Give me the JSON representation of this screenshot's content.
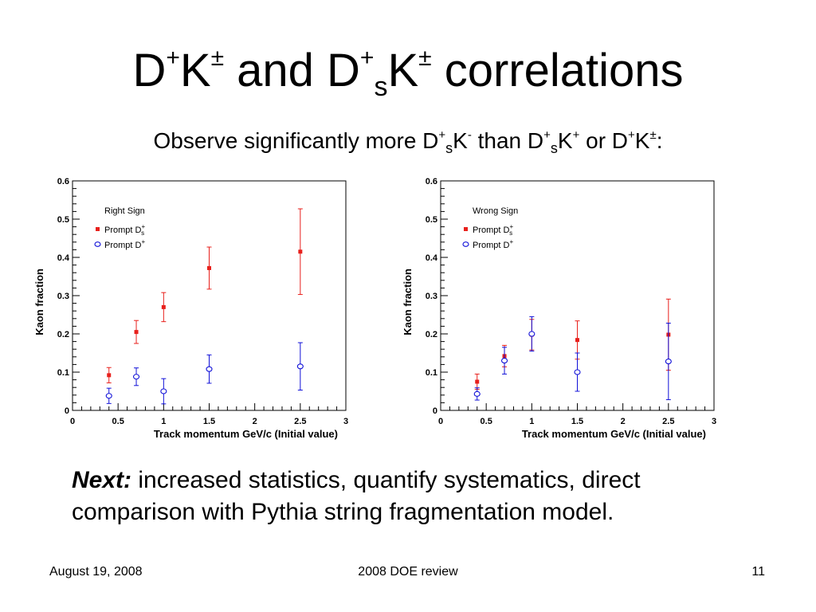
{
  "slide": {
    "title": {
      "p1": "D",
      "p2": "+",
      "p3": "K",
      "p4": "±",
      "p5": " and D",
      "p6": "+",
      "p7": "s",
      "p8": "K",
      "p9": "±",
      "p10": " correlations"
    },
    "subtitle": {
      "p1": "Observe significantly more D",
      "p2": "+",
      "p3": "s",
      "p4": "K",
      "p5": "-",
      "p6": " than D",
      "p7": "+",
      "p8": "s",
      "p9": "K",
      "p10": "+",
      "p11": " or D",
      "p12": "+",
      "p13": "K",
      "p14": "±",
      "p15": ":"
    },
    "next_label": "Next:",
    "next_body": " increased statistics, quantify systematics, direct comparison with Pythia string fragmentation model.",
    "footer": {
      "date": "August 19, 2008",
      "event": "2008 DOE review",
      "page": "11"
    }
  },
  "colors": {
    "prompt_ds": "#e8201c",
    "prompt_d": "#1010d8"
  },
  "chart_data": [
    {
      "type": "scatter",
      "legend_title": "Right Sign",
      "xlabel": "Track momentum GeV/c (Initial value)",
      "ylabel": "Kaon fraction",
      "xlim": [
        0,
        3
      ],
      "ylim": [
        0,
        0.6
      ],
      "xticks": [
        "0",
        "0.5",
        "1",
        "1.5",
        "2",
        "2.5",
        "3"
      ],
      "yticks": [
        "0",
        "0.1",
        "0.2",
        "0.3",
        "0.4",
        "0.5",
        "0.6"
      ],
      "legend_placement": "top-left",
      "series": [
        {
          "name": "Prompt D",
          "name_sup": "+",
          "name_sub": "s",
          "marker": "filled-square",
          "color": "#e8201c",
          "x": [
            0.4,
            0.7,
            1.0,
            1.5,
            2.5
          ],
          "y": [
            0.092,
            0.205,
            0.27,
            0.372,
            0.415
          ],
          "yerr": [
            0.02,
            0.03,
            0.038,
            0.055,
            0.112
          ]
        },
        {
          "name": "Prompt D",
          "name_sup": "+",
          "name_sub": "",
          "marker": "open-circle",
          "color": "#1010d8",
          "x": [
            0.4,
            0.7,
            1.0,
            1.5,
            2.5
          ],
          "y": [
            0.038,
            0.088,
            0.05,
            0.108,
            0.115
          ],
          "yerr": [
            0.02,
            0.023,
            0.033,
            0.037,
            0.062
          ]
        }
      ]
    },
    {
      "type": "scatter",
      "legend_title": "Wrong Sign",
      "xlabel": "Track momentum GeV/c (Initial value)",
      "ylabel": "Kaon fraction",
      "xlim": [
        0,
        3
      ],
      "ylim": [
        0,
        0.6
      ],
      "xticks": [
        "0",
        "0.5",
        "1",
        "1.5",
        "2",
        "2.5",
        "3"
      ],
      "yticks": [
        "0",
        "0.1",
        "0.2",
        "0.3",
        "0.4",
        "0.5",
        "0.6"
      ],
      "legend_placement": "top-left",
      "series": [
        {
          "name": "Prompt D",
          "name_sup": "+",
          "name_sub": "s",
          "marker": "filled-square",
          "color": "#e8201c",
          "x": [
            0.4,
            0.7,
            1.0,
            1.5,
            2.5
          ],
          "y": [
            0.075,
            0.142,
            0.198,
            0.184,
            0.198
          ],
          "yerr": [
            0.02,
            0.028,
            0.04,
            0.05,
            0.093
          ]
        },
        {
          "name": "Prompt D",
          "name_sup": "+",
          "name_sub": "",
          "marker": "open-circle",
          "color": "#1010d8",
          "x": [
            0.4,
            0.7,
            1.0,
            1.5,
            2.5
          ],
          "y": [
            0.043,
            0.13,
            0.2,
            0.1,
            0.128
          ],
          "yerr": [
            0.016,
            0.035,
            0.045,
            0.05,
            0.1
          ]
        }
      ]
    }
  ]
}
